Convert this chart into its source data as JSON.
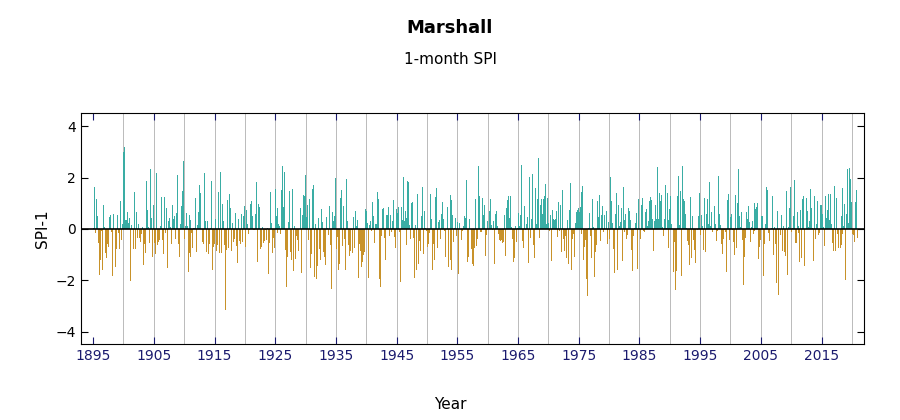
{
  "title": "Marshall",
  "subtitle": "1-month SPI",
  "ylabel": "SPI-1",
  "xlabel": "Year",
  "years_start": 1895,
  "years_end": 2021,
  "ylim": [
    -4.5,
    4.5
  ],
  "yticks": [
    -4,
    -2,
    0,
    2,
    4
  ],
  "xticks": [
    1895,
    1905,
    1915,
    1925,
    1935,
    1945,
    1955,
    1965,
    1975,
    1985,
    1995,
    2005,
    2015
  ],
  "xlim_left": 1893,
  "xlim_right": 2022,
  "decade_lines": [
    1900,
    1905,
    1910,
    1915,
    1920,
    1925,
    1930,
    1935,
    1940,
    1945,
    1950,
    1955,
    1960,
    1965,
    1970,
    1975,
    1980,
    1985,
    1990,
    1995,
    2000,
    2005,
    2010,
    2015,
    2020
  ],
  "color_positive": "#3aada4",
  "color_negative": "#c8922a",
  "color_zero_line": "#000000",
  "color_grid": "#b0b0b0",
  "background_color": "#ffffff",
  "title_fontsize": 13,
  "subtitle_fontsize": 11,
  "label_fontsize": 11,
  "tick_fontsize": 10,
  "tick_color": "#1a1a6e",
  "xlabel_color": "#000000"
}
